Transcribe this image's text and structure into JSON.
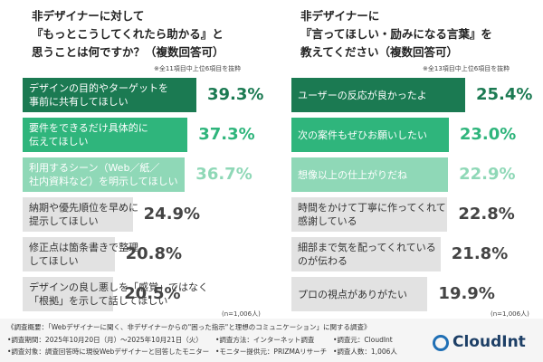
{
  "chart_data": [
    {
      "type": "bar",
      "orientation": "horizontal",
      "title": "非デザイナーに対して\n『もっとこうしてくれたら助かる』と\n思うことは何ですか？（複数回答可）",
      "note": "※全11項目中上位6項目を抜粋",
      "sample": "(n=1,006人)",
      "categories": [
        "デザインの目的やターゲットを\n事前に共有してほしい",
        "要件をできるだけ具体的に\n伝えてほしい",
        "利用するシーン（Web／紙／\n社内資料など）を明示してほしい",
        "納期や優先順位を早めに\n提示してほしい",
        "修正点は箇条書きで整理\nしてほしい",
        "デザインの良し悪しを「感覚」ではなく\n「根拠」を示して話してほしい"
      ],
      "values": [
        39.3,
        37.3,
        36.7,
        24.9,
        20.8,
        20.5
      ],
      "value_labels": [
        "39.3%",
        "37.3%",
        "36.7%",
        "24.9%",
        "20.8%",
        "20.5%"
      ],
      "colors": [
        "#1b7a52",
        "#2fb57c",
        "#8fd8b7",
        "#e2e2e2",
        "#e2e2e2",
        "#e2e2e2"
      ]
    },
    {
      "type": "bar",
      "orientation": "horizontal",
      "title": "非デザイナーに\n『言ってほしい・励みになる言葉』を\n教えてください（複数回答可）",
      "note": "※全13項目中上位6項目を抜粋",
      "sample": "(n=1,006人)",
      "categories": [
        "ユーザーの反応が良かったよ",
        "次の案件もぜひお願いしたい",
        "想像以上の仕上がりだね",
        "時間をかけて丁寧に作ってくれて\n感謝している",
        "細部まで気を配ってくれている\nのが伝わる",
        "プロの視点がありがたい"
      ],
      "values": [
        25.4,
        23.0,
        22.9,
        22.8,
        21.8,
        19.9
      ],
      "value_labels": [
        "25.4%",
        "23.0%",
        "22.9%",
        "22.8%",
        "21.8%",
        "19.9%"
      ],
      "colors": [
        "#1b7a52",
        "#2fb57c",
        "#8fd8b7",
        "#e2e2e2",
        "#e2e2e2",
        "#e2e2e2"
      ]
    }
  ],
  "footer": {
    "heading": "《調査概要：「Webデザイナーに聞く、非デザイナーからの\"困った指示\"と理想のコミュニケーション」に関する調査》",
    "items": [
      "•調査期間：2025年10月20日（月）～2025年10月21日（火）",
      "•調査方法：インターネット調査",
      "•調査元：CloudInt",
      "•調査対象：調査回答時に現役Webデザイナーと回答したモニター",
      "•モニター提供元：PRIZMAリサーチ",
      "•調査人数：1,006人"
    ]
  },
  "logo": "CloudInt"
}
